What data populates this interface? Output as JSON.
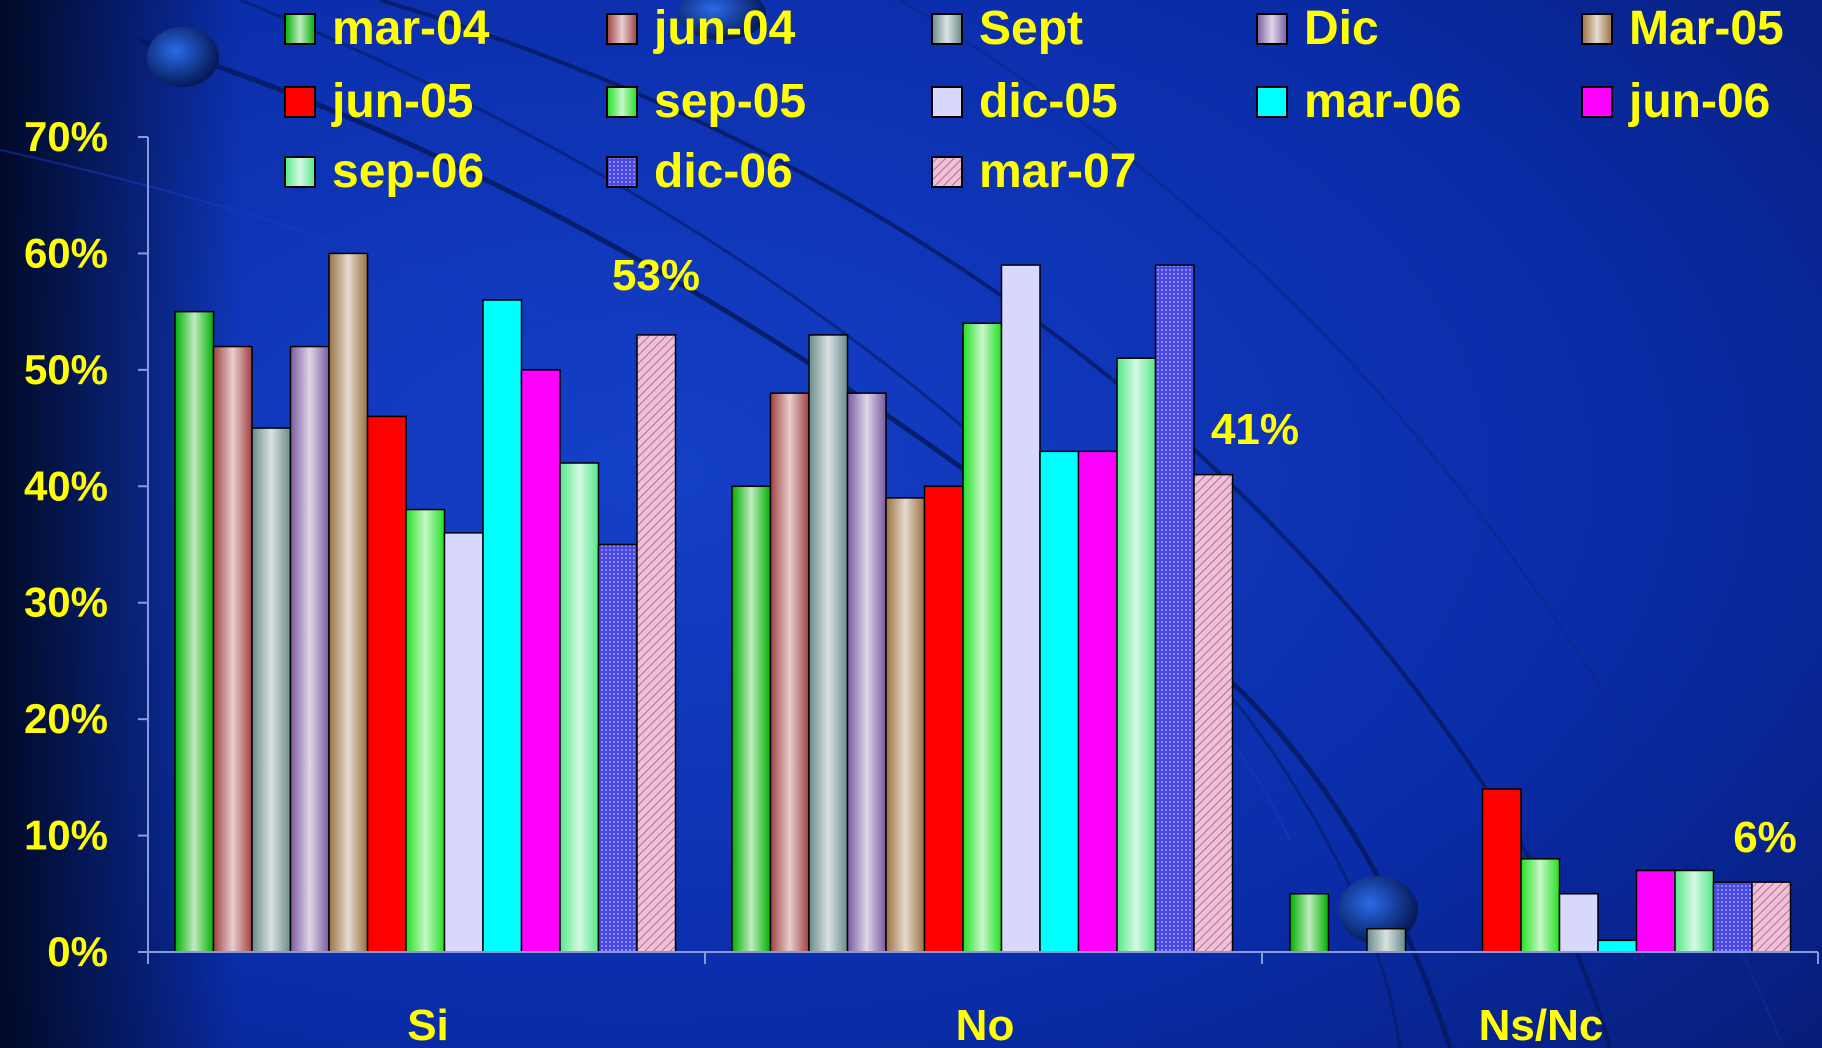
{
  "chart_data": {
    "type": "bar",
    "categories": [
      "Si",
      "No",
      "Ns/Nc"
    ],
    "y_ticks": [
      "0%",
      "10%",
      "20%",
      "30%",
      "40%",
      "50%",
      "60%",
      "70%"
    ],
    "ylim": [
      0,
      70
    ],
    "grid": false,
    "legend_position": "top",
    "text_color": "#ffff00",
    "series": [
      {
        "name": "mar-04",
        "color": "#00b000",
        "pattern": "gradient",
        "values": [
          55,
          40,
          5
        ]
      },
      {
        "name": "jun-04",
        "color": "#a04040",
        "pattern": "gradient",
        "values": [
          52,
          48,
          null
        ]
      },
      {
        "name": "Sept",
        "color": "#6a8a8a",
        "pattern": "gradient",
        "values": [
          45,
          53,
          2
        ]
      },
      {
        "name": "Dic",
        "color": "#7a5aa0",
        "pattern": "gradient",
        "values": [
          52,
          48,
          null
        ]
      },
      {
        "name": "Mar-05",
        "color": "#9a7040",
        "pattern": "gradient",
        "values": [
          60,
          39,
          null
        ]
      },
      {
        "name": "jun-05",
        "color": "#ff0000",
        "pattern": "solid",
        "values": [
          46,
          40,
          14
        ]
      },
      {
        "name": "sep-05",
        "color": "#22e022",
        "pattern": "gradient",
        "values": [
          38,
          54,
          8
        ]
      },
      {
        "name": "dic-05",
        "color": "#d8d8ff",
        "pattern": "solid",
        "values": [
          36,
          59,
          5
        ]
      },
      {
        "name": "mar-06",
        "color": "#00ffff",
        "pattern": "solid",
        "values": [
          56,
          43,
          1
        ]
      },
      {
        "name": "jun-06",
        "color": "#ff00ff",
        "pattern": "solid",
        "values": [
          50,
          43,
          7
        ]
      },
      {
        "name": "sep-06",
        "color": "#55e88a",
        "pattern": "gradient",
        "values": [
          42,
          51,
          7
        ]
      },
      {
        "name": "dic-06",
        "color": "#5a5aee",
        "pattern": "dots",
        "values": [
          35,
          59,
          6
        ]
      },
      {
        "name": "mar-07",
        "color": "#f0c0d8",
        "pattern": "hatch",
        "values": [
          53,
          41,
          6
        ]
      }
    ],
    "annotations": [
      {
        "text": "53%",
        "category": "Si",
        "value": 53
      },
      {
        "text": "41%",
        "category": "No",
        "value": 41
      },
      {
        "text": "6%",
        "category": "Ns/Nc",
        "value": 6
      }
    ]
  }
}
